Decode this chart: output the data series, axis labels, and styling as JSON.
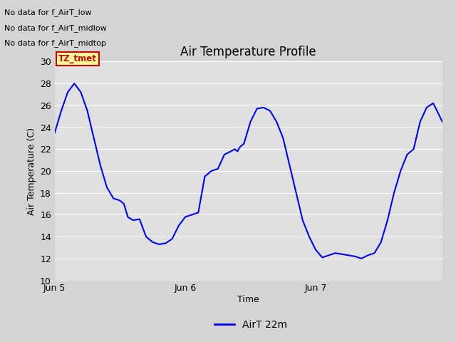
{
  "title": "Air Temperature Profile",
  "xlabel": "Time",
  "ylabel": "Air Temperature (C)",
  "ylim": [
    10,
    30
  ],
  "yticks": [
    10,
    12,
    14,
    16,
    18,
    20,
    22,
    24,
    26,
    28,
    30
  ],
  "xtick_labels": [
    "Jun 5",
    "Jun 6",
    "Jun 7"
  ],
  "xtick_positions": [
    0,
    1,
    2
  ],
  "xlim": [
    0,
    2.97
  ],
  "legend_label": "AirT 22m",
  "line_color": "#0000ff",
  "fig_facecolor": "#d4d4d4",
  "plot_facecolor": "#e0e0e0",
  "grid_color": "#ffffff",
  "annotations": [
    "No data for f_AirT_low",
    "No data for f_AirT_midlow",
    "No data for f_AirT_midtop"
  ],
  "tz_label": "TZ_tmet",
  "curve_x": [
    0.0,
    0.05,
    0.1,
    0.15,
    0.2,
    0.25,
    0.3,
    0.35,
    0.4,
    0.45,
    0.5,
    0.53,
    0.56,
    0.6,
    0.65,
    0.7,
    0.75,
    0.8,
    0.85,
    0.9,
    0.95,
    1.0,
    1.05,
    1.1,
    1.15,
    1.2,
    1.25,
    1.3,
    1.35,
    1.38,
    1.4,
    1.42,
    1.45,
    1.5,
    1.55,
    1.6,
    1.65,
    1.7,
    1.75,
    1.8,
    1.85,
    1.9,
    1.95,
    2.0,
    2.05,
    2.1,
    2.15,
    2.2,
    2.25,
    2.3,
    2.35,
    2.4,
    2.45,
    2.5,
    2.55,
    2.6,
    2.65,
    2.7,
    2.75,
    2.8,
    2.85,
    2.9,
    2.95,
    2.97
  ],
  "curve_y": [
    23.5,
    25.5,
    27.2,
    28.0,
    27.2,
    25.5,
    23.0,
    20.5,
    18.5,
    17.5,
    17.3,
    17.0,
    15.8,
    15.5,
    15.6,
    14.0,
    13.5,
    13.3,
    13.4,
    13.8,
    15.0,
    15.8,
    16.0,
    16.2,
    19.5,
    20.0,
    20.2,
    21.5,
    21.8,
    22.0,
    21.8,
    22.2,
    22.5,
    24.5,
    25.7,
    25.8,
    25.5,
    24.5,
    23.0,
    20.5,
    18.0,
    15.5,
    14.0,
    12.8,
    12.1,
    12.3,
    12.5,
    12.4,
    12.3,
    12.2,
    12.0,
    12.3,
    12.5,
    13.5,
    15.5,
    18.0,
    20.0,
    21.5,
    22.0,
    24.5,
    25.8,
    26.2,
    25.0,
    24.5
  ]
}
